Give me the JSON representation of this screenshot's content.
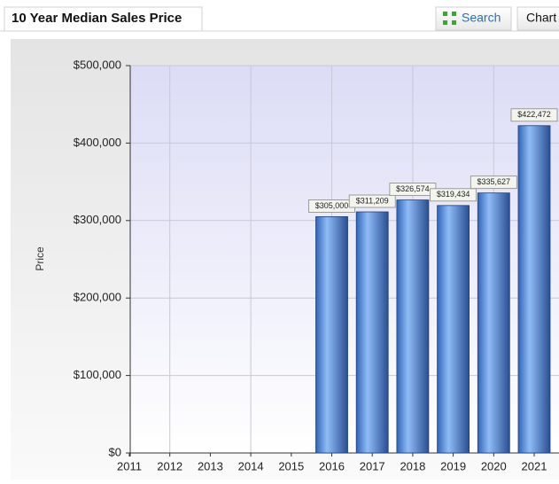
{
  "header": {
    "title": "10 Year Median Sales Price",
    "search": "Search",
    "chart_tab": "Chart"
  },
  "chart_data": {
    "type": "bar",
    "y_label": "Price",
    "categories": [
      "2011",
      "2012",
      "2013",
      "2014",
      "2015",
      "2016",
      "2017",
      "2018",
      "2019",
      "2020",
      "2021"
    ],
    "values": [
      null,
      null,
      null,
      null,
      null,
      305000,
      311209,
      326574,
      319434,
      335627,
      422472
    ],
    "value_labels": [
      null,
      null,
      null,
      null,
      null,
      "$305,000",
      "$311,209",
      "$326,574",
      "$319,434",
      "$335,627",
      "$422,472"
    ],
    "color": "#5b8fdd",
    "ylim": [
      0,
      500000
    ],
    "yticks": [
      {
        "value": 0,
        "label": "$0"
      },
      {
        "value": 100000,
        "label": "$100,000"
      },
      {
        "value": 200000,
        "label": "$200,000"
      },
      {
        "value": 300000,
        "label": "$300,000"
      },
      {
        "value": 400000,
        "label": "$400,000"
      },
      {
        "value": 500000,
        "label": "$500,000"
      }
    ],
    "grid": true
  }
}
